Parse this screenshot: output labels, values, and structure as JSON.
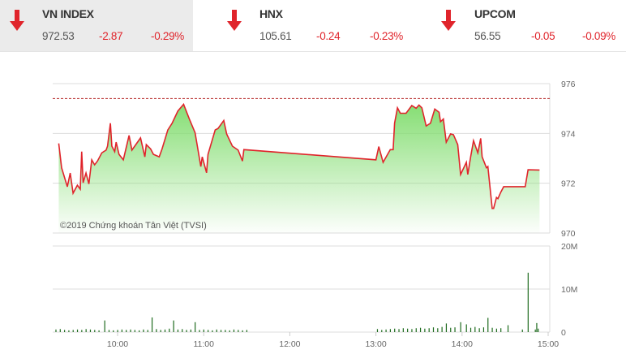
{
  "indices": [
    {
      "name": "VN INDEX",
      "value": "972.53",
      "change": "-2.87",
      "percent": "-0.29%",
      "direction": "down",
      "active": true
    },
    {
      "name": "HNX",
      "value": "105.61",
      "change": "-0.24",
      "percent": "-0.23%",
      "direction": "down",
      "active": false
    },
    {
      "name": "UPCOM",
      "value": "56.55",
      "change": "-0.05",
      "percent": "-0.09%",
      "direction": "down",
      "active": false
    }
  ],
  "colors": {
    "down": "#e0242b",
    "line": "#e0242b",
    "fill": "#8fe07f",
    "volume": "#1e6b1e",
    "reference": "#b22222"
  },
  "chart_data": [
    {
      "type": "area",
      "watermark": "©2019 Chứng khoán Tân Việt (TVSI)",
      "reference_value": 975.4,
      "ylim": [
        970,
        976
      ],
      "yticks": [
        "976",
        "974",
        "972",
        "970"
      ],
      "grid": true,
      "x": [
        "9:19",
        "9:21",
        "9:25",
        "9:27",
        "9:29",
        "9:32",
        "9:34",
        "9:35",
        "9:36",
        "9:38",
        "9:40",
        "9:42",
        "9:44",
        "9:46",
        "9:49",
        "9:52",
        "9:53",
        "9:55",
        "9:56",
        "9:58",
        "9:59",
        "10:01",
        "10:04",
        "10:08",
        "10:10",
        "10:16",
        "10:19",
        "10:20",
        "10:23",
        "10:25",
        "10:29",
        "10:31",
        "10:35",
        "10:38",
        "10:42",
        "10:46",
        "10:50",
        "10:54",
        "10:58",
        "10:59",
        "11:02",
        "11:03",
        "11:08",
        "11:10",
        "11:14",
        "11:16",
        "11:20",
        "11:24",
        "11:27",
        "11:28",
        "13:00",
        "13:02",
        "13:05",
        "13:10",
        "13:12",
        "13:13",
        "13:15",
        "13:17",
        "13:21",
        "13:25",
        "13:28",
        "13:30",
        "13:32",
        "13:35",
        "13:38",
        "13:41",
        "13:44",
        "13:45",
        "13:47",
        "13:49",
        "13:52",
        "13:54",
        "13:57",
        "13:59",
        "14:03",
        "14:04",
        "14:06",
        "14:08",
        "14:11",
        "14:13",
        "14:14",
        "14:17",
        "14:18",
        "14:21",
        "14:22",
        "14:24",
        "14:25",
        "14:27",
        "14:29",
        "14:44",
        "14:46",
        "14:54"
      ],
      "y": [
        973.6,
        972.62,
        971.86,
        972.41,
        971.6,
        971.92,
        971.76,
        973.27,
        972.02,
        972.41,
        971.97,
        972.94,
        972.74,
        972.89,
        973.22,
        973.33,
        973.49,
        974.41,
        973.49,
        973.27,
        973.65,
        973.16,
        972.94,
        973.92,
        973.33,
        973.82,
        973.06,
        973.55,
        973.38,
        973.16,
        973.06,
        973.38,
        974.14,
        974.41,
        974.9,
        975.17,
        974.58,
        974.03,
        972.67,
        973.06,
        972.42,
        973.16,
        974.14,
        974.2,
        974.52,
        973.98,
        973.49,
        973.33,
        972.89,
        973.35,
        972.94,
        973.47,
        972.84,
        973.35,
        973.35,
        974.41,
        975.03,
        974.81,
        974.81,
        975.12,
        975.01,
        975.14,
        975.03,
        974.3,
        974.41,
        974.98,
        974.85,
        974.47,
        974.58,
        973.65,
        973.98,
        973.95,
        973.55,
        972.35,
        972.84,
        972.35,
        973.06,
        973.71,
        973.22,
        973.8,
        973.06,
        972.62,
        972.67,
        970.99,
        970.99,
        971.43,
        971.38,
        971.64,
        971.86,
        971.86,
        972.54,
        972.53
      ]
    },
    {
      "type": "bar",
      "ylim": [
        0,
        20
      ],
      "yticks": [
        "20M",
        "10M",
        "0"
      ],
      "xticks": [
        "10:00",
        "11:00",
        "12:00",
        "13:00",
        "14:00",
        "15:00"
      ],
      "xlim": [
        "9:15",
        "15:00"
      ],
      "grid": true,
      "x": [
        "9:17",
        "9:20",
        "9:23",
        "9:26",
        "9:29",
        "9:32",
        "9:35",
        "9:38",
        "9:41",
        "9:44",
        "9:47",
        "9:51",
        "9:54",
        "9:57",
        "10:00",
        "10:03",
        "10:06",
        "10:09",
        "10:12",
        "10:15",
        "10:18",
        "10:21",
        "10:24",
        "10:27",
        "10:30",
        "10:33",
        "10:36",
        "10:39",
        "10:42",
        "10:45",
        "10:48",
        "10:51",
        "10:54",
        "10:57",
        "11:00",
        "11:03",
        "11:06",
        "11:09",
        "11:12",
        "11:15",
        "11:18",
        "11:21",
        "11:24",
        "11:27",
        "11:30",
        "13:01",
        "13:04",
        "13:07",
        "13:10",
        "13:13",
        "13:16",
        "13:19",
        "13:22",
        "13:25",
        "13:28",
        "13:31",
        "13:34",
        "13:37",
        "13:40",
        "13:43",
        "13:46",
        "13:49",
        "13:52",
        "13:55",
        "13:59",
        "14:03",
        "14:06",
        "14:09",
        "14:12",
        "14:15",
        "14:18",
        "14:21",
        "14:24",
        "14:27",
        "14:32",
        "14:42",
        "14:46",
        "14:51",
        "14:52",
        "14:53"
      ],
      "values": [
        0.6,
        0.7,
        0.5,
        0.4,
        0.5,
        0.6,
        0.5,
        0.7,
        0.6,
        0.5,
        0.4,
        2.7,
        0.5,
        0.4,
        0.5,
        0.6,
        0.5,
        0.6,
        0.5,
        0.4,
        0.6,
        0.5,
        3.4,
        0.7,
        0.5,
        0.6,
        0.8,
        2.7,
        0.6,
        0.7,
        0.5,
        0.6,
        2.3,
        0.5,
        0.6,
        0.5,
        0.4,
        0.6,
        0.5,
        0.5,
        0.4,
        0.6,
        0.5,
        0.4,
        0.5,
        0.7,
        0.5,
        0.6,
        0.7,
        0.8,
        0.7,
        0.9,
        0.8,
        0.7,
        0.9,
        1.0,
        0.8,
        0.9,
        1.1,
        0.9,
        1.2,
        2.0,
        1.0,
        1.1,
        2.3,
        1.8,
        1.0,
        1.2,
        0.9,
        1.1,
        3.3,
        1.0,
        0.8,
        0.9,
        1.6,
        0.6,
        13.8,
        0.6,
        2.1,
        0.8
      ]
    }
  ]
}
